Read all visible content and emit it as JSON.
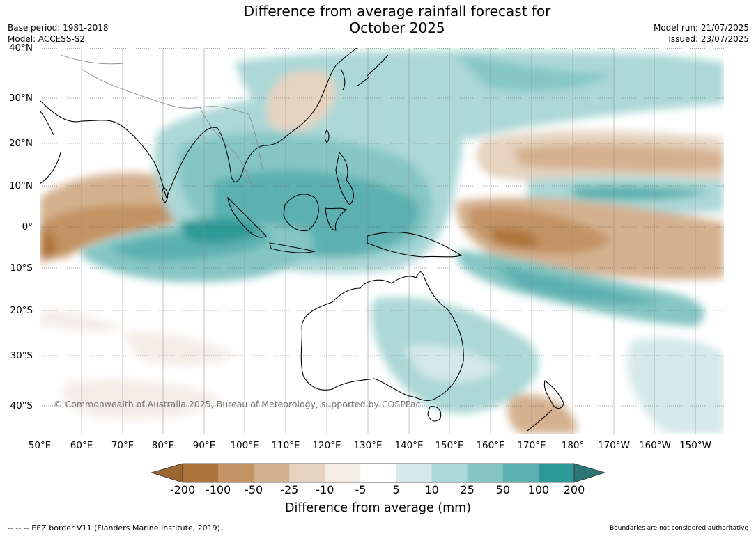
{
  "title_line1": "Difference from average rainfall forecast for",
  "title_line2": "October 2025",
  "base_period": "Base period: 1981-2018",
  "model": "Model: ACCESS-S2",
  "model_run": "Model run: 21/07/2025",
  "issued": "Issued: 23/07/2025",
  "lat_labels": [
    "40°N",
    "30°N",
    "20°N",
    "10°N",
    "0°",
    "10°S",
    "20°S",
    "30°S",
    "40°S"
  ],
  "lon_labels": [
    "50°E",
    "60°E",
    "70°E",
    "80°E",
    "90°E",
    "100°E",
    "110°E",
    "120°E",
    "130°E",
    "140°E",
    "150°E",
    "160°E",
    "170°E",
    "180°",
    "170°W",
    "160°W",
    "150°W"
  ],
  "copyright": "© Commonwealth of Australia 2025, Bureau of Meteorology, supported by COSPPac",
  "colorbar": {
    "labels": [
      "-200",
      "-100",
      "-50",
      "-25",
      "-10",
      "-5",
      "5",
      "10",
      "25",
      "50",
      "100",
      "200"
    ],
    "colors": [
      "#9c6631",
      "#ad743b",
      "#c39363",
      "#d4b18e",
      "#e6d3c0",
      "#f3ede6",
      "#ffffff",
      "#d4e9e8",
      "#acd8d7",
      "#85c6c4",
      "#5cb1b0",
      "#2e9a98",
      "#2d7675"
    ],
    "title": "Difference from average (mm)"
  },
  "footer_left": "--  --  -- EEZ border V11 (Flanders Marine Institute, 2019).",
  "footer_right": "Boundaries are not considered authoritative"
}
